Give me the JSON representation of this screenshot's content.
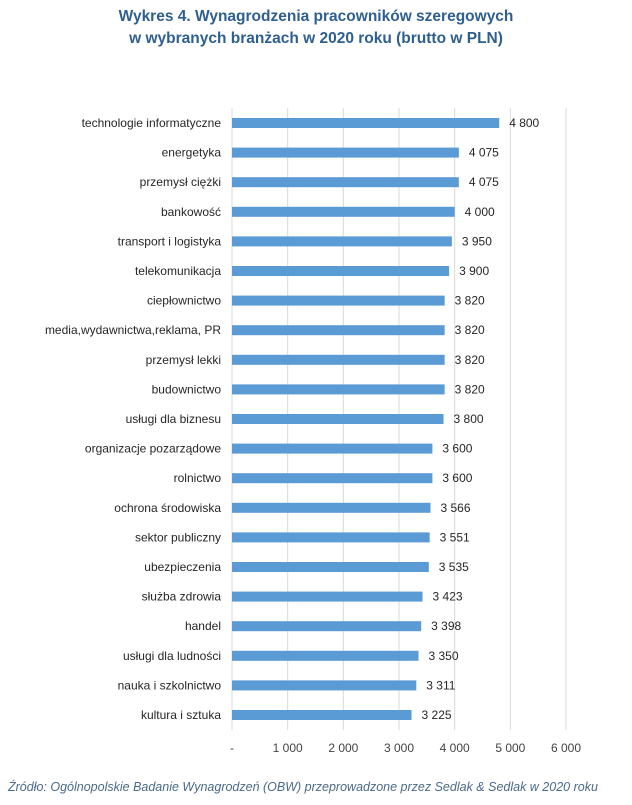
{
  "title_line1": "Wykres 4. Wynagrodzenia pracowników szeregowych",
  "title_line2": "w wybranych branżach w 2020 roku (brutto w PLN)",
  "source": "Źródło: Ogólnopolskie Badanie Wynagrodzeń (OBW) przeprowadzone przez Sedlak & Sedlak w 2020 roku",
  "colors": {
    "bar": "#5b9bd5",
    "grid": "#d9d9d9",
    "title": "#2e5f8f"
  },
  "chart_data": {
    "type": "bar",
    "orientation": "horizontal",
    "title": "Wykres 4. Wynagrodzenia pracowników szeregowych w wybranych branżach w 2020 roku (brutto w PLN)",
    "categories": [
      "technologie informatyczne",
      "energetyka",
      "przemysł ciężki",
      "bankowość",
      "transport i logistyka",
      "telekomunikacja",
      "ciepłownictwo",
      "media,wydawnictwa,reklama, PR",
      "przemysł lekki",
      "budownictwo",
      "usługi dla biznesu",
      "organizacje pozarządowe",
      "rolnictwo",
      "ochrona środowiska",
      "sektor publiczny",
      "ubezpieczenia",
      "służba zdrowia",
      "handel",
      "usługi dla ludności",
      "nauka i szkolnictwo",
      "kultura i sztuka"
    ],
    "values": [
      4800,
      4075,
      4075,
      4000,
      3950,
      3900,
      3820,
      3820,
      3820,
      3820,
      3800,
      3600,
      3600,
      3566,
      3551,
      3535,
      3423,
      3398,
      3350,
      3311,
      3225
    ],
    "value_labels": [
      "4 800",
      "4 075",
      "4 075",
      "4 000",
      "3 950",
      "3 900",
      "3 820",
      "3 820",
      "3 820",
      "3 820",
      "3 800",
      "3 600",
      "3 600",
      "3 566",
      "3 551",
      "3 535",
      "3 423",
      "3 398",
      "3 350",
      "3 311",
      "3 225"
    ],
    "x_ticks": [
      0,
      1000,
      2000,
      3000,
      4000,
      5000,
      6000
    ],
    "x_tick_labels": [
      "-",
      "1 000",
      "2 000",
      "3 000",
      "4 000",
      "5 000",
      "6 000"
    ],
    "xlim": [
      0,
      6000
    ],
    "grid": true,
    "legend": false
  }
}
